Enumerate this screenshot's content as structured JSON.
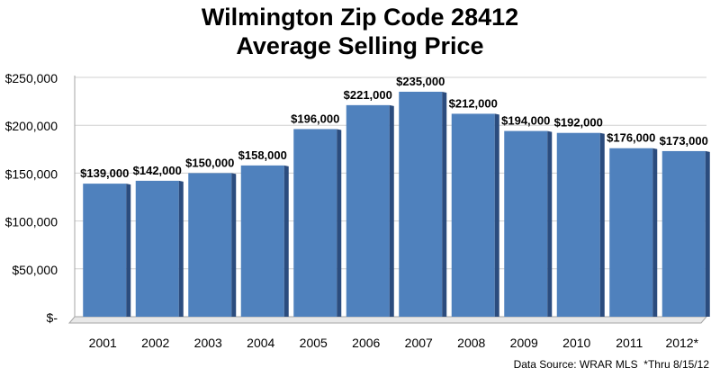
{
  "chart_data": {
    "type": "bar",
    "title": [
      "Wilmington Zip Code 28412",
      "Average Selling Price"
    ],
    "categories": [
      "2001",
      "2002",
      "2003",
      "2004",
      "2005",
      "2006",
      "2007",
      "2008",
      "2009",
      "2010",
      "2011",
      "2012*"
    ],
    "values": [
      139000,
      142000,
      150000,
      158000,
      196000,
      221000,
      235000,
      212000,
      194000,
      192000,
      176000,
      173000
    ],
    "data_labels": [
      "$139,000",
      "$142,000",
      "$150,000",
      "$158,000",
      "$196,000",
      "$221,000",
      "$235,000",
      "$212,000",
      "$194,000",
      "$192,000",
      "$176,000",
      "$173,000"
    ],
    "ylim": [
      0,
      250000
    ],
    "yticks": [
      0,
      50000,
      100000,
      150000,
      200000,
      250000
    ],
    "ytick_labels": [
      "$-",
      "$50,000",
      "$100,000",
      "$150,000",
      "$200,000",
      "$250,000"
    ],
    "grid": true,
    "legend": "none",
    "bar_color": "#4f81bd",
    "bar_side_color": "#2b4c7e",
    "xlabel": "",
    "ylabel": ""
  },
  "source_note": "Data Source: WRAR MLS  *Thru 8/15/12"
}
